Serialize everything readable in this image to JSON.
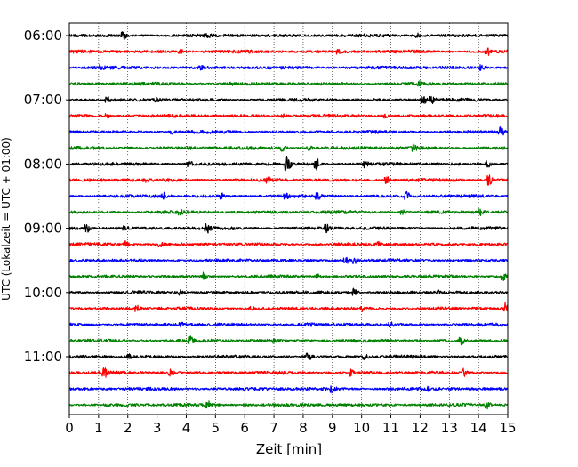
{
  "chart_data": {
    "type": "line",
    "subtype": "helicorder",
    "xlabel": "Zeit  [min]",
    "ylabel": "UTC (Lokalzeit = UTC + 01:00)",
    "xlim": [
      0,
      15
    ],
    "x_ticks": [
      0,
      1,
      2,
      3,
      4,
      5,
      6,
      7,
      8,
      9,
      10,
      11,
      12,
      13,
      14,
      15
    ],
    "grid": "vertical dotted lines at each minute",
    "trace_colors": [
      "#000000",
      "#ff0000",
      "#0000ff",
      "#008000"
    ],
    "y_tick_labels": [
      {
        "label": "06:00",
        "trace": 0
      },
      {
        "label": "07:00",
        "trace": 4
      },
      {
        "label": "08:00",
        "trace": 8
      },
      {
        "label": "09:00",
        "trace": 12
      },
      {
        "label": "10:00",
        "trace": 16
      },
      {
        "label": "11:00",
        "trace": 20
      }
    ],
    "trace_count": 24,
    "traces": [
      {
        "events": [
          [
            1.85,
            0.5
          ],
          [
            4.7,
            0.3
          ],
          [
            11.9,
            0.35
          ]
        ]
      },
      {
        "events": [
          [
            9.2,
            0.3
          ],
          [
            14.3,
            0.55
          ],
          [
            3.8,
            0.3
          ]
        ]
      },
      {
        "events": [
          [
            1.1,
            0.45
          ],
          [
            14.1,
            0.45
          ],
          [
            4.5,
            0.25
          ]
        ]
      },
      {
        "events": [
          [
            5.5,
            0.2
          ],
          [
            12.0,
            0.25
          ]
        ]
      },
      {
        "events": [
          [
            1.3,
            0.35
          ],
          [
            12.1,
            0.8
          ],
          [
            12.4,
            0.6
          ],
          [
            3.0,
            0.3
          ]
        ]
      },
      {
        "events": [
          [
            1.3,
            0.35
          ],
          [
            7.3,
            0.25
          ],
          [
            10.8,
            0.25
          ]
        ]
      },
      {
        "events": [
          [
            14.75,
            0.7
          ],
          [
            3.5,
            0.25
          ]
        ]
      },
      {
        "events": [
          [
            7.3,
            0.5
          ],
          [
            8.2,
            0.35
          ],
          [
            11.8,
            0.55
          ],
          [
            4.1,
            0.3
          ]
        ]
      },
      {
        "events": [
          [
            7.45,
            1.3
          ],
          [
            8.45,
            0.85
          ],
          [
            10.1,
            0.55
          ],
          [
            4.1,
            0.5
          ],
          [
            14.3,
            0.5
          ]
        ]
      },
      {
        "events": [
          [
            10.85,
            0.6
          ],
          [
            14.35,
            0.8
          ],
          [
            6.8,
            0.35
          ],
          [
            2.6,
            0.3
          ]
        ]
      },
      {
        "events": [
          [
            3.2,
            0.6
          ],
          [
            5.2,
            0.5
          ],
          [
            8.5,
            0.6
          ],
          [
            11.55,
            0.65
          ],
          [
            7.4,
            0.35
          ]
        ]
      },
      {
        "events": [
          [
            14.05,
            0.6
          ],
          [
            3.8,
            0.3
          ],
          [
            11.4,
            0.35
          ]
        ]
      },
      {
        "events": [
          [
            0.6,
            0.6
          ],
          [
            4.7,
            0.65
          ],
          [
            8.8,
            0.55
          ],
          [
            1.9,
            0.35
          ]
        ]
      },
      {
        "events": [
          [
            1.9,
            0.55
          ],
          [
            3.1,
            0.35
          ],
          [
            10.6,
            0.3
          ]
        ]
      },
      {
        "events": [
          [
            9.45,
            0.55
          ],
          [
            9.75,
            0.55
          ]
        ]
      },
      {
        "events": [
          [
            4.6,
            0.55
          ],
          [
            14.85,
            0.65
          ],
          [
            8.5,
            0.3
          ]
        ]
      },
      {
        "events": [
          [
            9.75,
            0.9
          ],
          [
            3.8,
            0.35
          ],
          [
            12.6,
            0.3
          ]
        ]
      },
      {
        "events": [
          [
            14.9,
            0.85
          ],
          [
            2.3,
            0.5
          ],
          [
            6.2,
            0.3
          ],
          [
            10.0,
            0.3
          ]
        ]
      },
      {
        "events": [
          [
            3.8,
            0.3
          ],
          [
            11.0,
            0.3
          ],
          [
            8.2,
            0.25
          ]
        ]
      },
      {
        "events": [
          [
            4.1,
            0.7
          ],
          [
            13.4,
            0.55
          ],
          [
            7.0,
            0.25
          ]
        ]
      },
      {
        "events": [
          [
            8.15,
            0.75
          ],
          [
            10.1,
            0.5
          ],
          [
            2.0,
            0.35
          ]
        ]
      },
      {
        "events": [
          [
            1.2,
            0.6
          ],
          [
            3.45,
            0.5
          ],
          [
            9.6,
            0.6
          ],
          [
            13.5,
            0.7
          ]
        ]
      },
      {
        "events": [
          [
            9.0,
            0.55
          ],
          [
            12.3,
            0.25
          ]
        ]
      },
      {
        "events": [
          [
            4.7,
            0.7
          ],
          [
            14.3,
            0.5
          ],
          [
            6.0,
            0.3
          ]
        ]
      }
    ]
  }
}
